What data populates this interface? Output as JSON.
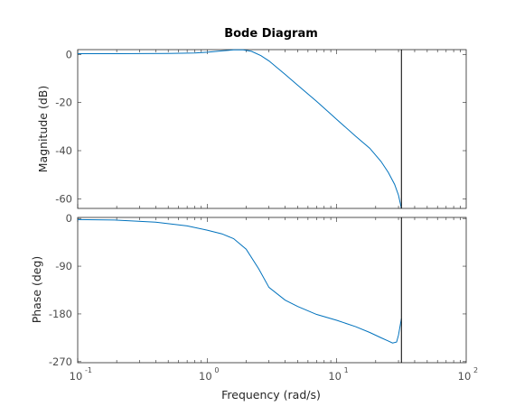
{
  "chart_data": [
    {
      "type": "line",
      "title": "Bode Diagram",
      "panel": "magnitude",
      "ylabel": "Magnitude (dB)",
      "xscale": "log",
      "xlim": [
        0.1,
        100
      ],
      "ylim": [
        -64,
        2
      ],
      "yticks": [
        0,
        -20,
        -40,
        -60
      ],
      "line_color": "#0072bd",
      "vertical_line_x": 31.6,
      "series": [
        {
          "x": [
            0.1,
            0.2,
            0.5,
            0.8,
            1.0,
            1.3,
            1.6,
            1.9,
            2.2,
            2.6,
            3.0,
            4.0,
            5.0,
            7.0,
            10.0,
            14.0,
            18.0,
            22.0,
            25.0,
            28.0,
            30.0,
            31.6
          ],
          "y": [
            0.3,
            0.3,
            0.4,
            0.6,
            0.9,
            1.5,
            1.9,
            1.9,
            1.3,
            -0.5,
            -2.7,
            -8.3,
            -12.8,
            -19.5,
            -27.0,
            -34.0,
            -39.0,
            -44.5,
            -49.0,
            -54.0,
            -58.5,
            -64.0
          ]
        }
      ]
    },
    {
      "type": "line",
      "panel": "phase",
      "ylabel": "Phase (deg)",
      "xlabel": "Frequency  (rad/s)",
      "xscale": "log",
      "xlim": [
        0.1,
        100
      ],
      "ylim": [
        -272,
        2
      ],
      "yticks": [
        0,
        -90,
        -180,
        -270
      ],
      "xticks": [
        {
          "base": "10",
          "exp": "-1",
          "value": 0.1
        },
        {
          "base": "10",
          "exp": "0",
          "value": 1
        },
        {
          "base": "10",
          "exp": "1",
          "value": 10
        },
        {
          "base": "10",
          "exp": "2",
          "value": 100
        }
      ],
      "line_color": "#0072bd",
      "vertical_line_x": 31.6,
      "series": [
        {
          "x": [
            0.1,
            0.2,
            0.4,
            0.7,
            1.0,
            1.3,
            1.6,
            2.0,
            2.5,
            3.0,
            4.0,
            5.0,
            7.0,
            10.0,
            14.0,
            18.0,
            22.0,
            25.0,
            27.0,
            29.0,
            30.0,
            31.0,
            31.6
          ],
          "y": [
            -2,
            -3,
            -7,
            -14,
            -22,
            -29,
            -38,
            -58,
            -95,
            -130,
            -154,
            -166,
            -181,
            -192,
            -204,
            -215,
            -225,
            -231,
            -235,
            -233,
            -220,
            -200,
            -189
          ]
        }
      ]
    }
  ]
}
